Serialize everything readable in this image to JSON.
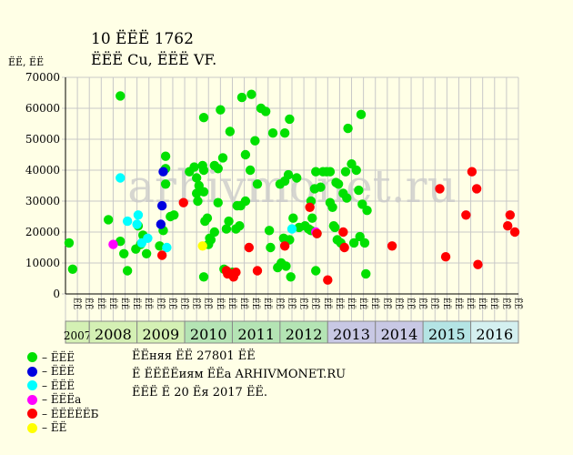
{
  "header": {
    "title": "10 ЁЁЁ 1762",
    "subtitle": "ЁЁЁ Cu, ЁЁЁ VF.",
    "y_unit": "ЁЁ, ЁЁ"
  },
  "watermark": "arhivmonet.ru",
  "legend": [
    {
      "label": "– ЁЁЁ",
      "color": "#00e000",
      "icon": "green-dot"
    },
    {
      "label": "– ЁЁЁ",
      "color": "#0000e0",
      "icon": "blue-dot"
    },
    {
      "label": "– ЁЁЁ",
      "color": "#00ffff",
      "icon": "cyan-dot"
    },
    {
      "label": "– ЁЁЁа",
      "color": "#ff00ff",
      "icon": "magenta-dot"
    },
    {
      "label": "– ЁЁЁЁЁБ",
      "color": "#ff0000",
      "icon": "red-dot"
    },
    {
      "label": "– ЁЁ",
      "color": "#ffff00",
      "icon": "yellow-dot"
    }
  ],
  "footer": {
    "line1": "ЁЁняя ЁЁ 27801 ЁЁ",
    "line2": "Ё ЁЁЁЁиям ЁЁа ARHIVMONET.RU",
    "line3": "ЁЁЁ Ё 20 Ёя 2017 ЁЁ."
  },
  "chart_data": {
    "type": "scatter",
    "y_ticks": [
      "0",
      "10000",
      "20000",
      "30000",
      "40000",
      "50000",
      "60000",
      "70000"
    ],
    "ylim": [
      0,
      70000
    ],
    "xlim": [
      0,
      38
    ],
    "grid": true,
    "half_year_labels": [
      "ЁЁ",
      "ЁЁ"
    ],
    "years": [
      {
        "label": "2007",
        "start": 0,
        "end": 2,
        "color": "#d4f0b4"
      },
      {
        "label": "2008",
        "start": 2,
        "end": 6,
        "color": "#d4f0b4"
      },
      {
        "label": "2009",
        "start": 6,
        "end": 10,
        "color": "#d4f0b4"
      },
      {
        "label": "2010",
        "start": 10,
        "end": 14,
        "color": "#b4e4b4"
      },
      {
        "label": "2011",
        "start": 14,
        "end": 18,
        "color": "#b4e4b4"
      },
      {
        "label": "2012",
        "start": 18,
        "end": 22,
        "color": "#b4e4b4"
      },
      {
        "label": "2013",
        "start": 22,
        "end": 26,
        "color": "#c8c8e4"
      },
      {
        "label": "2014",
        "start": 26,
        "end": 30,
        "color": "#c8c8e4"
      },
      {
        "label": "2015",
        "start": 30,
        "end": 34,
        "color": "#b4e4e4"
      },
      {
        "label": "2016",
        "start": 34,
        "end": 38,
        "color": "#d4f0f0"
      }
    ],
    "series": [
      {
        "color": "#00e000",
        "points": [
          [
            0.3,
            16500
          ],
          [
            0.6,
            8000
          ],
          [
            3.6,
            24000
          ],
          [
            4.6,
            64000
          ],
          [
            4.6,
            17000
          ],
          [
            4.9,
            13000
          ],
          [
            5.2,
            7500
          ],
          [
            5.9,
            14500
          ],
          [
            6.1,
            22000
          ],
          [
            6.3,
            16000
          ],
          [
            6.5,
            19000
          ],
          [
            6.8,
            13000
          ],
          [
            6.6,
            18000
          ],
          [
            7.9,
            15500
          ],
          [
            8.2,
            20500
          ],
          [
            8.4,
            44500
          ],
          [
            8.4,
            40500
          ],
          [
            8.4,
            35500
          ],
          [
            8.8,
            25000
          ],
          [
            9.1,
            25500
          ],
          [
            10.4,
            39500
          ],
          [
            10.8,
            41000
          ],
          [
            11.0,
            32500
          ],
          [
            11.0,
            37500
          ],
          [
            11.1,
            30000
          ],
          [
            11.2,
            35000
          ],
          [
            11.5,
            41500
          ],
          [
            11.6,
            40000
          ],
          [
            11.6,
            33000
          ],
          [
            11.7,
            23500
          ],
          [
            11.9,
            24500
          ],
          [
            12.0,
            16000
          ],
          [
            12.1,
            18000
          ],
          [
            12.2,
            17500
          ],
          [
            11.6,
            57000
          ],
          [
            11.6,
            5500
          ],
          [
            12.5,
            41500
          ],
          [
            12.5,
            20000
          ],
          [
            12.8,
            40500
          ],
          [
            12.8,
            29500
          ],
          [
            13.0,
            59500
          ],
          [
            13.2,
            44000
          ],
          [
            13.3,
            8000
          ],
          [
            13.5,
            21000
          ],
          [
            13.7,
            23500
          ],
          [
            13.8,
            52500
          ],
          [
            14.0,
            7000
          ],
          [
            14.3,
            21000
          ],
          [
            14.4,
            28500
          ],
          [
            14.6,
            22000
          ],
          [
            14.7,
            28500
          ],
          [
            14.8,
            63500
          ],
          [
            15.1,
            30000
          ],
          [
            15.1,
            45000
          ],
          [
            15.5,
            40000
          ],
          [
            15.6,
            64500
          ],
          [
            15.9,
            49500
          ],
          [
            16.1,
            35500
          ],
          [
            16.4,
            60000
          ],
          [
            16.8,
            59000
          ],
          [
            17.1,
            20500
          ],
          [
            17.2,
            15000
          ],
          [
            17.4,
            52000
          ],
          [
            17.8,
            8500
          ],
          [
            18.0,
            35500
          ],
          [
            18.1,
            10000
          ],
          [
            18.3,
            18000
          ],
          [
            18.4,
            36500
          ],
          [
            18.4,
            52000
          ],
          [
            18.5,
            9000
          ],
          [
            18.7,
            38500
          ],
          [
            18.8,
            56500
          ],
          [
            18.9,
            5500
          ],
          [
            18.8,
            17500
          ],
          [
            19.1,
            24500
          ],
          [
            19.4,
            37500
          ],
          [
            19.6,
            21500
          ],
          [
            20.1,
            22000
          ],
          [
            20.4,
            21000
          ],
          [
            20.6,
            20500
          ],
          [
            20.6,
            30000
          ],
          [
            20.7,
            24500
          ],
          [
            20.9,
            34000
          ],
          [
            21.0,
            39500
          ],
          [
            21.0,
            7500
          ],
          [
            21.1,
            19500
          ],
          [
            21.4,
            34500
          ],
          [
            21.6,
            39500
          ],
          [
            21.9,
            39500
          ],
          [
            22.2,
            29500
          ],
          [
            22.2,
            39500
          ],
          [
            22.4,
            28000
          ],
          [
            22.5,
            22000
          ],
          [
            22.6,
            21500
          ],
          [
            22.7,
            36000
          ],
          [
            22.8,
            17500
          ],
          [
            22.9,
            35500
          ],
          [
            23.1,
            16500
          ],
          [
            23.3,
            32500
          ],
          [
            23.5,
            39500
          ],
          [
            23.6,
            31000
          ],
          [
            23.7,
            53500
          ],
          [
            24.0,
            42000
          ],
          [
            24.2,
            16500
          ],
          [
            24.4,
            40000
          ],
          [
            24.6,
            33500
          ],
          [
            24.7,
            18500
          ],
          [
            24.8,
            58000
          ],
          [
            24.9,
            29000
          ],
          [
            25.1,
            16500
          ],
          [
            25.2,
            6500
          ],
          [
            25.3,
            27000
          ]
        ]
      },
      {
        "color": "#0000e0",
        "points": [
          [
            8.0,
            22500
          ],
          [
            8.1,
            28500
          ],
          [
            8.2,
            39500
          ]
        ]
      },
      {
        "color": "#00ffff",
        "points": [
          [
            4.6,
            37500
          ],
          [
            5.2,
            23500
          ],
          [
            6.0,
            22500
          ],
          [
            6.1,
            25500
          ],
          [
            6.4,
            16500
          ],
          [
            6.9,
            18000
          ],
          [
            8.5,
            15000
          ],
          [
            19.0,
            21000
          ]
        ]
      },
      {
        "color": "#ff00ff",
        "points": [
          [
            4.0,
            16000
          ],
          [
            21.0,
            20000
          ]
        ]
      },
      {
        "color": "#ff0000",
        "points": [
          [
            8.1,
            12500
          ],
          [
            9.9,
            29500
          ],
          [
            13.5,
            7500
          ],
          [
            13.6,
            6500
          ],
          [
            13.9,
            6500
          ],
          [
            14.1,
            5500
          ],
          [
            14.3,
            7000
          ],
          [
            15.4,
            15000
          ],
          [
            16.1,
            7500
          ],
          [
            18.4,
            15500
          ],
          [
            20.5,
            28000
          ],
          [
            21.1,
            19500
          ],
          [
            22.0,
            4500
          ],
          [
            23.3,
            20000
          ],
          [
            23.4,
            15000
          ],
          [
            27.4,
            15500
          ],
          [
            31.4,
            34000
          ],
          [
            31.9,
            12000
          ],
          [
            33.6,
            25500
          ],
          [
            34.1,
            39500
          ],
          [
            34.5,
            34000
          ],
          [
            34.6,
            9500
          ],
          [
            37.1,
            22000
          ],
          [
            37.3,
            25500
          ],
          [
            37.7,
            20000
          ]
        ]
      },
      {
        "color": "#ffff00",
        "points": [
          [
            11.5,
            15500
          ]
        ]
      }
    ]
  }
}
